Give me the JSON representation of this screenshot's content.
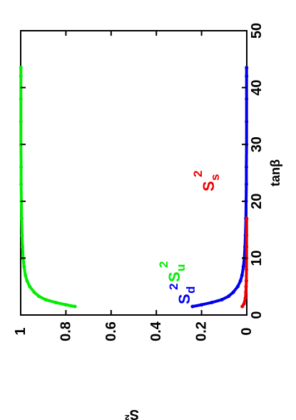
{
  "chart_data": {
    "type": "scatter",
    "rotated": "90deg-clockwise",
    "title": "",
    "xlabel": "tanβ",
    "ylabel": "S²",
    "xlim": [
      0,
      50
    ],
    "ylim": [
      0,
      1
    ],
    "x_ticks": [
      "0",
      "10",
      "20",
      "30",
      "40",
      "50"
    ],
    "y_ticks": [
      "0",
      "0.2",
      "0.4",
      "0.6",
      "0.8",
      "1"
    ],
    "grid": false,
    "legend": "none",
    "series": [
      {
        "name": "Su",
        "label_base": "S",
        "label_sub": "u",
        "label_sup": "2",
        "color": "#00ee00",
        "x": [
          1.5,
          1.8,
          2.2,
          2.7,
          3.3,
          4.0,
          5.0,
          6.0,
          7.0,
          8.5,
          10,
          12,
          14,
          17,
          20,
          23,
          26,
          30,
          34,
          38,
          42,
          43.5
        ],
        "y": [
          0.76,
          0.8,
          0.845,
          0.89,
          0.92,
          0.94,
          0.96,
          0.972,
          0.979,
          0.985,
          0.989,
          0.992,
          0.994,
          0.996,
          0.997,
          0.998,
          0.998,
          0.999,
          0.999,
          0.999,
          0.999,
          0.999
        ]
      },
      {
        "name": "Sd",
        "label_base": "S",
        "label_sub": "d",
        "label_sup": "2",
        "color": "#0000ee",
        "x": [
          1.5,
          1.8,
          2.2,
          2.7,
          3.3,
          4.0,
          5.0,
          6.0,
          7.0,
          8.5,
          10,
          12,
          14,
          17,
          20,
          23,
          26,
          30,
          34,
          38,
          42,
          43.5
        ],
        "y": [
          0.24,
          0.2,
          0.155,
          0.11,
          0.08,
          0.06,
          0.04,
          0.028,
          0.021,
          0.015,
          0.011,
          0.008,
          0.006,
          0.004,
          0.003,
          0.002,
          0.002,
          0.001,
          0.001,
          0.001,
          0.001,
          0.001
        ]
      },
      {
        "name": "Ss",
        "label_base": "S",
        "label_sub": "s",
        "label_sup": "2",
        "color": "#ee0000",
        "x": [
          1.5,
          2,
          3,
          4,
          5,
          6,
          8,
          10,
          12,
          14,
          17
        ],
        "y": [
          0.02,
          0.012,
          0.006,
          0.004,
          0.003,
          0.002,
          0.0015,
          0.001,
          0.001,
          0.0008,
          0.0006
        ]
      }
    ]
  }
}
